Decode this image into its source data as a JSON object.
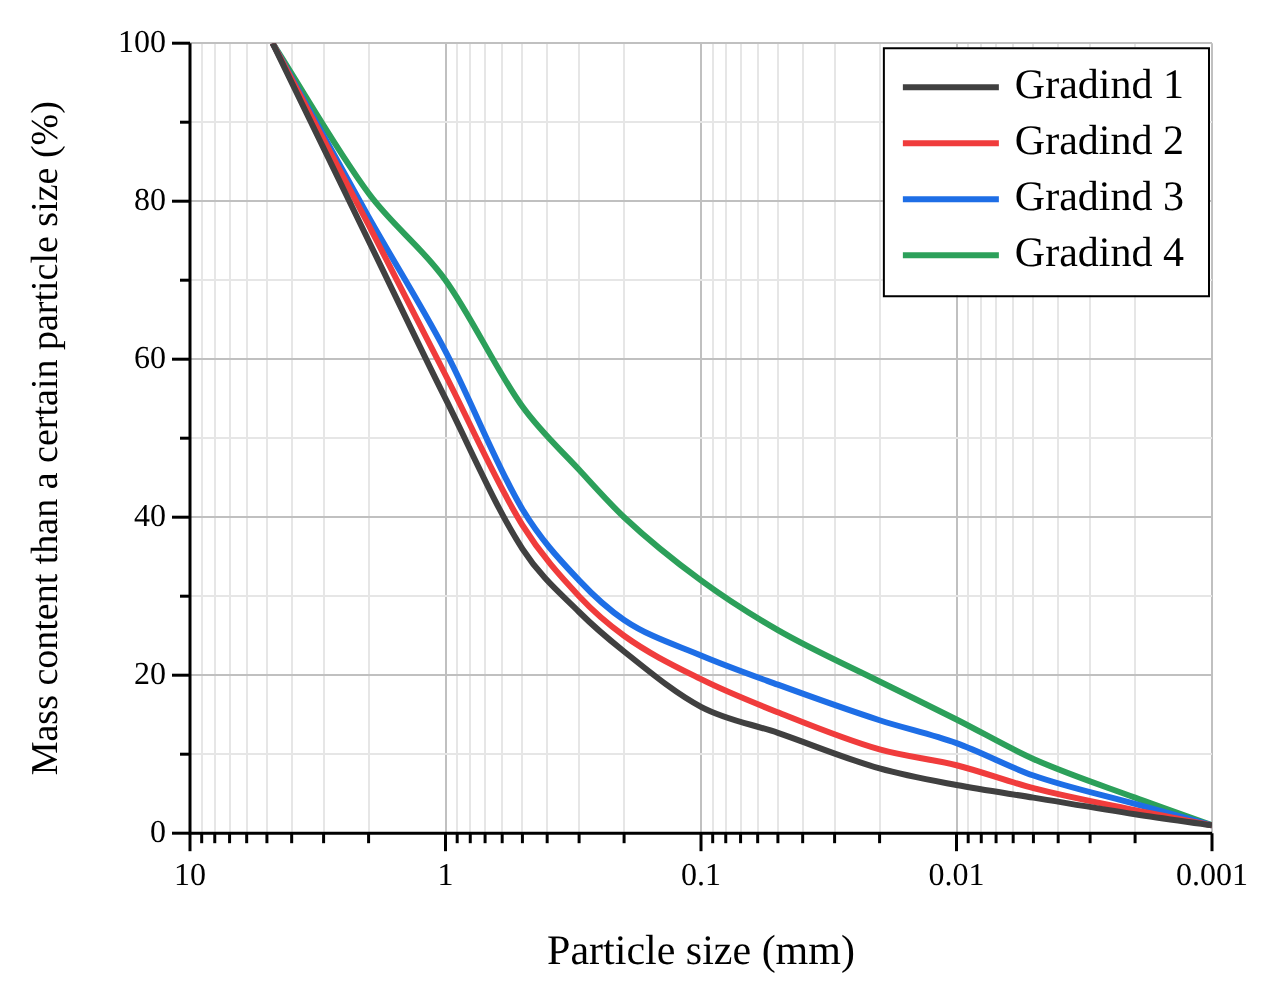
{
  "chart_data": {
    "type": "line",
    "xlabel": "Particle size (mm)",
    "ylabel": "Mass content than a certain particle size (%)",
    "x": [
      4.75,
      2,
      1,
      0.5,
      0.3,
      0.2,
      0.1,
      0.05,
      0.02,
      0.01,
      0.005,
      0.002,
      0.001
    ],
    "series": [
      {
        "name": "Gradind 1",
        "color": "#404040",
        "values": [
          100,
          75,
          55,
          36,
          28,
          23,
          16,
          12.7,
          8.2,
          6.1,
          4.5,
          2.4,
          1
        ]
      },
      {
        "name": "Gradind 2",
        "color": "#f03c3c",
        "values": [
          100,
          77,
          58,
          39,
          30,
          25,
          19.5,
          15.3,
          10.6,
          8.6,
          5.7,
          2.9,
          1
        ]
      },
      {
        "name": "Gradind 3",
        "color": "#1e6ee6",
        "values": [
          100,
          78,
          61,
          41,
          32,
          27,
          22.5,
          18.8,
          14.3,
          11.4,
          7.3,
          3.7,
          1
        ]
      },
      {
        "name": "Gradind 4",
        "color": "#2ca05a",
        "values": [
          100,
          81,
          70,
          54,
          46,
          40,
          32,
          25.7,
          19.2,
          14.4,
          9.4,
          4.5,
          1
        ]
      }
    ],
    "log": "x",
    "xlim": [
      10,
      0.001
    ],
    "xticks": [
      10,
      {
        "value": 9,
        "label": null
      },
      {
        "value": 8,
        "label": null
      },
      {
        "value": 7,
        "label": null
      },
      {
        "value": 6,
        "label": null
      },
      {
        "value": 5,
        "label": null
      },
      {
        "value": 4,
        "label": null
      },
      {
        "value": 3,
        "label": null
      },
      {
        "value": 2,
        "label": null
      },
      1,
      {
        "value": 0.9,
        "label": null
      },
      {
        "value": 0.8,
        "label": null
      },
      {
        "value": 0.7,
        "label": null
      },
      {
        "value": 0.6,
        "label": null
      },
      {
        "value": 0.5,
        "label": null
      },
      {
        "value": 0.4,
        "label": null
      },
      {
        "value": 0.3,
        "label": null
      },
      {
        "value": 0.2,
        "label": null
      },
      0.1,
      {
        "value": 0.09,
        "label": null
      },
      {
        "value": 0.08,
        "label": null
      },
      {
        "value": 0.07,
        "label": null
      },
      {
        "value": 0.06,
        "label": null
      },
      {
        "value": 0.05,
        "label": null
      },
      {
        "value": 0.04,
        "label": null
      },
      {
        "value": 0.03,
        "label": null
      },
      {
        "value": 0.02,
        "label": null
      },
      0.01,
      {
        "value": 0.009,
        "label": null
      },
      {
        "value": 0.008,
        "label": null
      },
      {
        "value": 0.007,
        "label": null
      },
      {
        "value": 0.006,
        "label": null
      },
      {
        "value": 0.005,
        "label": null
      },
      {
        "value": 0.004,
        "label": null
      },
      {
        "value": 0.003,
        "label": null
      },
      {
        "value": 0.002,
        "label": null
      },
      0.001
    ],
    "ylim": [
      0,
      100
    ],
    "yticks": [
      0,
      {
        "value": 10,
        "label": null
      },
      20,
      {
        "value": 30,
        "label": null
      },
      40,
      {
        "value": 50,
        "label": null
      },
      60,
      {
        "value": 70,
        "label": null
      },
      80,
      {
        "value": 90,
        "label": null
      },
      100
    ],
    "grid": true,
    "legend": "top right",
    "marker": "none",
    "line_style": "solid"
  }
}
